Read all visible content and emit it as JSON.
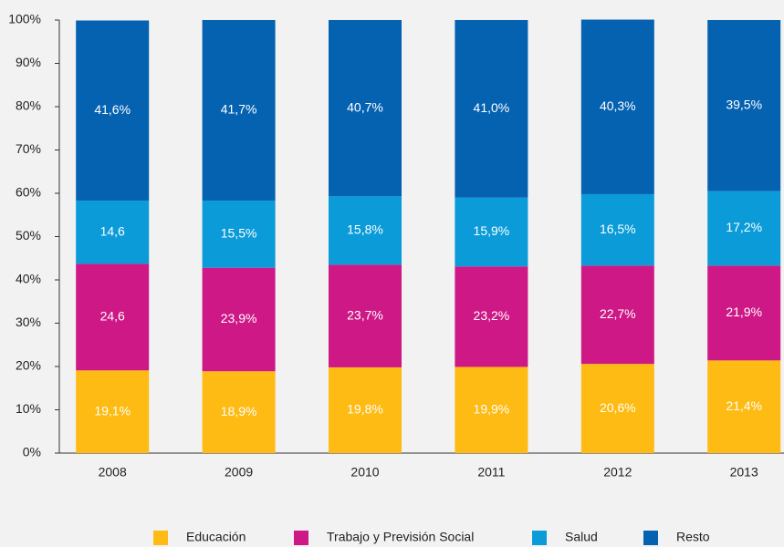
{
  "chart_data": {
    "type": "stacked_bar",
    "categories": [
      "2008",
      "2009",
      "2010",
      "2011",
      "2012",
      "2013"
    ],
    "series": [
      {
        "name": "Educación",
        "color": "#fdbb13",
        "values": [
          19.1,
          18.9,
          19.8,
          19.9,
          20.6,
          21.4
        ],
        "value_labels": [
          "19,1%",
          "18,9%",
          "19,8%",
          "19,9%",
          "20,6%",
          "21,4%"
        ]
      },
      {
        "name": "Trabajo y Previsión Social",
        "color": "#cd1886",
        "values": [
          24.6,
          23.9,
          23.7,
          23.2,
          22.7,
          21.9
        ],
        "value_labels": [
          "24,6",
          "23,9%",
          "23,7%",
          "23,2%",
          "22,7%",
          "21,9%"
        ]
      },
      {
        "name": "Salud",
        "color": "#0a9bd8",
        "values": [
          14.6,
          15.5,
          15.8,
          15.9,
          16.5,
          17.2
        ],
        "value_labels": [
          "14,6",
          "15,5%",
          "15,8%",
          "15,9%",
          "16,5%",
          "17,2%"
        ]
      },
      {
        "name": "Resto",
        "color": "#0562b1",
        "values": [
          41.6,
          41.7,
          40.7,
          41.0,
          40.3,
          39.5
        ],
        "value_labels": [
          "41,6%",
          "41,7%",
          "40,7%",
          "41,0%",
          "40,3%",
          "39,5%"
        ]
      }
    ],
    "ylim": [
      0,
      100
    ],
    "yticks": [
      {
        "value": 0,
        "label": "0%"
      },
      {
        "value": 10,
        "label": "10%"
      },
      {
        "value": 20,
        "label": "20%"
      },
      {
        "value": 30,
        "label": "30%"
      },
      {
        "value": 40,
        "label": "40%"
      },
      {
        "value": 50,
        "label": "50%"
      },
      {
        "value": 60,
        "label": "60%"
      },
      {
        "value": 70,
        "label": "70%"
      },
      {
        "value": 80,
        "label": "80%"
      },
      {
        "value": 90,
        "label": "90%"
      },
      {
        "value": 100,
        "label": "100%"
      }
    ],
    "legend": "bottom"
  }
}
